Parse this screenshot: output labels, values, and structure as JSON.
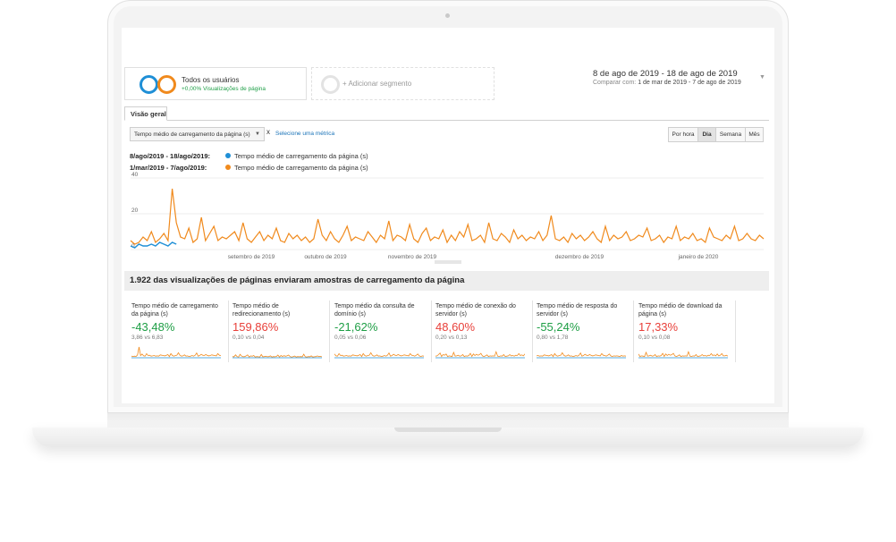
{
  "segments": {
    "all_users_title": "Todos os usuários",
    "all_users_sub": "+0,00% Visualizações de página",
    "add_segment": "+ Adicionar segmento"
  },
  "date_range": {
    "current": "8 de ago de 2019 - 18 de ago de 2019",
    "compare_prefix": "Comparar com:",
    "compare_range": "1 de mar de 2019 - 7 de ago de 2019"
  },
  "tabs": {
    "overview": "Visão geral"
  },
  "toolbar": {
    "metric": "Tempo médio de carregamento da página (s)",
    "remove": "x",
    "select_metric": "Selecione uma métrica",
    "granularity": [
      "Por hora",
      "Dia",
      "Semana",
      "Mês"
    ],
    "active_granularity": "Dia"
  },
  "legend": [
    {
      "date": "8/ago/2019 - 18/ago/2019:",
      "label": "Tempo médio de carregamento da página (s)",
      "color": "#1f8fd6"
    },
    {
      "date": "1/mar/2019 - 7/ago/2019:",
      "label": "Tempo médio de carregamento da página (s)",
      "color": "#f08a1d"
    }
  ],
  "chart_data": {
    "type": "line",
    "y_ticks": [
      "40",
      "20",
      "0"
    ],
    "ylim": [
      0,
      40
    ],
    "x_tick_labels": [
      "setembro de 2019",
      "outubro de 2019",
      "novembro de 2019",
      "dezembro de 2019",
      "janeiro de 2020"
    ],
    "series": [
      {
        "color": "#f08a1d",
        "values": [
          5,
          3,
          4,
          7,
          5,
          10,
          4,
          6,
          9,
          5,
          34,
          15,
          7,
          6,
          12,
          4,
          6,
          18,
          5,
          9,
          13,
          5,
          7,
          6,
          8,
          10,
          5,
          15,
          6,
          4,
          7,
          10,
          5,
          8,
          6,
          12,
          5,
          4,
          9,
          6,
          8,
          5,
          7,
          4,
          6,
          17,
          8,
          5,
          10,
          6,
          4,
          8,
          13,
          5,
          7,
          6,
          5,
          10,
          7,
          4,
          8,
          6,
          16,
          5,
          8,
          7,
          5,
          14,
          6,
          4,
          9,
          12,
          5,
          7,
          6,
          11,
          4,
          8,
          5,
          10,
          7,
          14,
          5,
          6,
          8,
          4,
          15,
          6,
          5,
          9,
          7,
          4,
          11,
          6,
          8,
          5,
          7,
          6,
          10,
          5,
          8,
          19,
          6,
          5,
          7,
          4,
          9,
          6,
          8,
          5,
          7,
          10,
          6,
          4,
          13,
          5,
          8,
          6,
          7,
          10,
          5,
          6,
          8,
          7,
          12,
          5,
          6,
          8,
          4,
          7,
          6,
          13,
          5,
          7,
          6,
          9,
          5,
          6,
          4,
          12,
          7,
          6,
          5,
          8,
          6,
          13,
          5,
          6,
          9,
          6,
          5,
          8,
          6
        ]
      },
      {
        "color": "#1f8fd6",
        "values": [
          2,
          1,
          3,
          2,
          2,
          3,
          2,
          4,
          3,
          2,
          4,
          3
        ]
      }
    ]
  },
  "summary_title": "1.922 das visualizações de páginas enviaram amostras de carregamento da página",
  "metrics": [
    {
      "title": "Tempo médio de carregamento da página (s)",
      "pct": "-43,48%",
      "cmp": "3,86 vs 6,83",
      "trend": "pos"
    },
    {
      "title": "Tempo médio de redirecionamento (s)",
      "pct": "159,86%",
      "cmp": "0,10 vs 0,04",
      "trend": "neg"
    },
    {
      "title": "Tempo médio da consulta de domínio (s)",
      "pct": "-21,62%",
      "cmp": "0,05 vs 0,06",
      "trend": "pos"
    },
    {
      "title": "Tempo médio de conexão do servidor (s)",
      "pct": "48,60%",
      "cmp": "0,20 vs 0,13",
      "trend": "neg"
    },
    {
      "title": "Tempo médio de resposta do servidor (s)",
      "pct": "-55,24%",
      "cmp": "0,80 vs 1,78",
      "trend": "pos"
    },
    {
      "title": "Tempo médio de download da página (s)",
      "pct": "17,33%",
      "cmp": "0,10 vs 0,08",
      "trend": "neg"
    }
  ]
}
